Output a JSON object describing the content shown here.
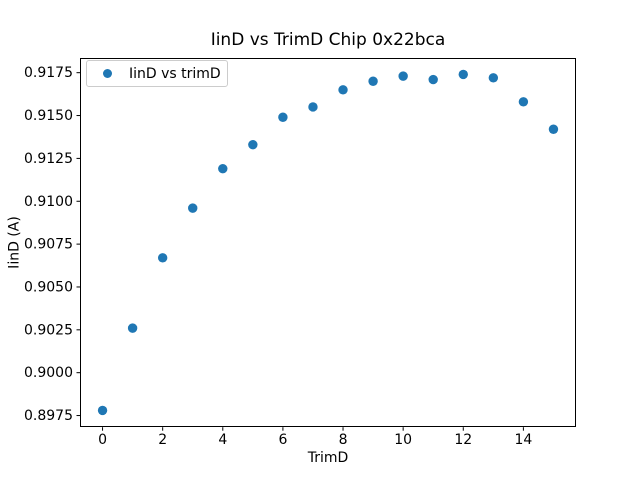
{
  "chart_data": {
    "type": "scatter",
    "title": "IinD vs TrimD Chip 0x22bca",
    "xlabel": "TrimD",
    "ylabel": "IinD (A)",
    "legend": {
      "position": "upper left",
      "entries": [
        "IinD vs trimD"
      ]
    },
    "series": [
      {
        "name": "IinD vs trimD",
        "x": [
          0,
          1,
          2,
          3,
          4,
          5,
          6,
          7,
          8,
          9,
          10,
          11,
          12,
          13,
          14,
          15
        ],
        "y": [
          0.8978,
          0.9026,
          0.9067,
          0.9096,
          0.9119,
          0.9133,
          0.9149,
          0.9155,
          0.9165,
          0.917,
          0.9173,
          0.9171,
          0.9174,
          0.9172,
          0.9158,
          0.9142
        ]
      }
    ],
    "xlim": [
      -0.75,
      15.75
    ],
    "ylim": [
      0.89682,
      0.91838
    ],
    "xticks": [
      0,
      2,
      4,
      6,
      8,
      10,
      12,
      14
    ],
    "yticks": [
      0.8975,
      0.9,
      0.9025,
      0.905,
      0.9075,
      0.91,
      0.9125,
      0.915,
      0.9175
    ],
    "ytick_decimals": 4,
    "grid": false,
    "marker_color": "#1f77b4",
    "spine_color": "#000000",
    "background": "#ffffff"
  }
}
